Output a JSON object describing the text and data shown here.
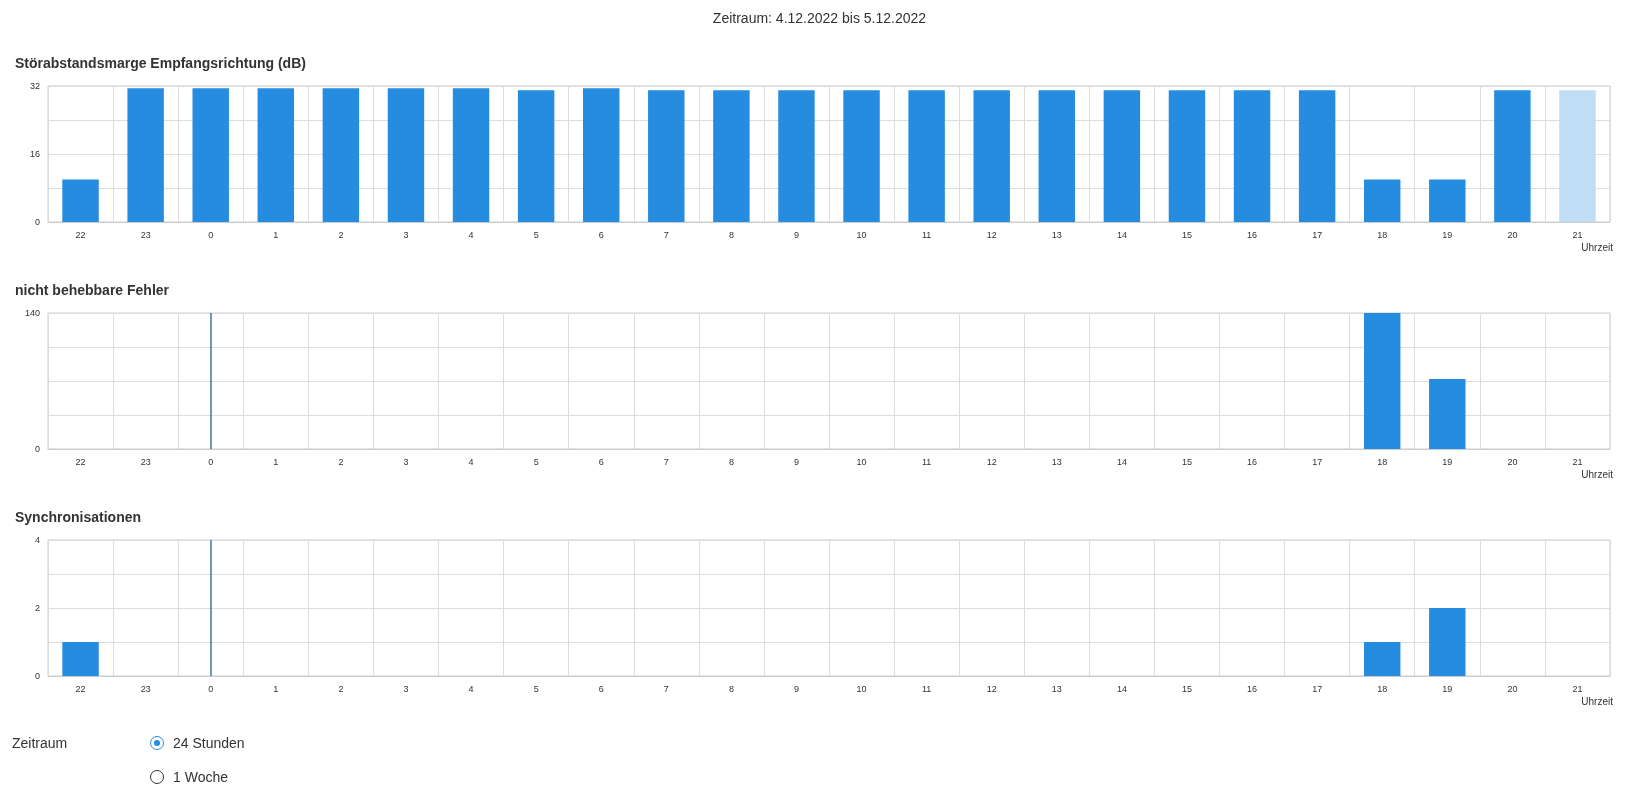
{
  "chart_data": [
    {
      "type": "bar",
      "annotations": [
        "Zeitraum: 4.12.2022 bis 5.12.2022"
      ],
      "title": "Störabstandsmarge Empfangsrichtung (dB)",
      "xlabel": "Uhrzeit",
      "categories": [
        "22",
        "23",
        "0",
        "1",
        "2",
        "3",
        "4",
        "5",
        "6",
        "7",
        "8",
        "9",
        "10",
        "11",
        "12",
        "13",
        "14",
        "15",
        "16",
        "17",
        "18",
        "19",
        "20",
        "21"
      ],
      "values": [
        10,
        31.5,
        31.5,
        31.5,
        31.5,
        31.5,
        31.5,
        31,
        31.5,
        31,
        31,
        31,
        31,
        31,
        31,
        31,
        31,
        31,
        31,
        31,
        10,
        10,
        31,
        31
      ],
      "colors": [
        "#268ce0",
        "#268ce0",
        "#268ce0",
        "#268ce0",
        "#268ce0",
        "#268ce0",
        "#268ce0",
        "#268ce0",
        "#268ce0",
        "#268ce0",
        "#268ce0",
        "#268ce0",
        "#268ce0",
        "#268ce0",
        "#268ce0",
        "#268ce0",
        "#268ce0",
        "#268ce0",
        "#268ce0",
        "#268ce0",
        "#268ce0",
        "#268ce0",
        "#268ce0",
        "#bfddf4"
      ],
      "ylim": [
        0,
        32
      ],
      "yticks": [
        0,
        {
          "value": 8,
          "label": null
        },
        16,
        {
          "value": 24,
          "label": null
        },
        32
      ],
      "grid": true
    },
    {
      "type": "bar",
      "title": "nicht behebbare Fehler",
      "xlabel": "Uhrzeit",
      "categories": [
        "22",
        "23",
        "0",
        "1",
        "2",
        "3",
        "4",
        "5",
        "6",
        "7",
        "8",
        "9",
        "10",
        "11",
        "12",
        "13",
        "14",
        "15",
        "16",
        "17",
        "18",
        "19",
        "20",
        "21"
      ],
      "values": [
        0,
        0,
        0,
        0,
        0,
        0,
        0,
        0,
        0,
        0,
        0,
        0,
        0,
        0,
        0,
        0,
        0,
        0,
        0,
        0,
        140,
        72,
        0,
        0
      ],
      "color": "#268ce0",
      "ylim": [
        0,
        140
      ],
      "yticks": [
        0,
        {
          "value": 35,
          "label": null
        },
        {
          "value": 70,
          "label": null
        },
        {
          "value": 105,
          "label": null
        },
        140
      ],
      "grid": true,
      "ref_lines": [
        {
          "axis": "x",
          "value": "0",
          "color": "#3f74ad"
        }
      ]
    },
    {
      "type": "bar",
      "title": "Synchronisationen",
      "xlabel": "Uhrzeit",
      "categories": [
        "22",
        "23",
        "0",
        "1",
        "2",
        "3",
        "4",
        "5",
        "6",
        "7",
        "8",
        "9",
        "10",
        "11",
        "12",
        "13",
        "14",
        "15",
        "16",
        "17",
        "18",
        "19",
        "20",
        "21"
      ],
      "values": [
        1,
        0,
        0,
        0,
        0,
        0,
        0,
        0,
        0,
        0,
        0,
        0,
        0,
        0,
        0,
        0,
        0,
        0,
        0,
        0,
        1,
        2,
        0,
        0
      ],
      "color": "#268ce0",
      "ylim": [
        0,
        4
      ],
      "yticks": [
        0,
        {
          "value": 1,
          "label": null
        },
        2,
        {
          "value": 3,
          "label": null
        },
        4
      ],
      "grid": true,
      "ref_lines": [
        {
          "axis": "x",
          "value": "0",
          "color": "#3f74ad"
        }
      ]
    },
    {
      "type": "other",
      "title": "Zeitraum",
      "annotations": [
        "24 Stunden",
        "1 Woche"
      ]
    }
  ]
}
